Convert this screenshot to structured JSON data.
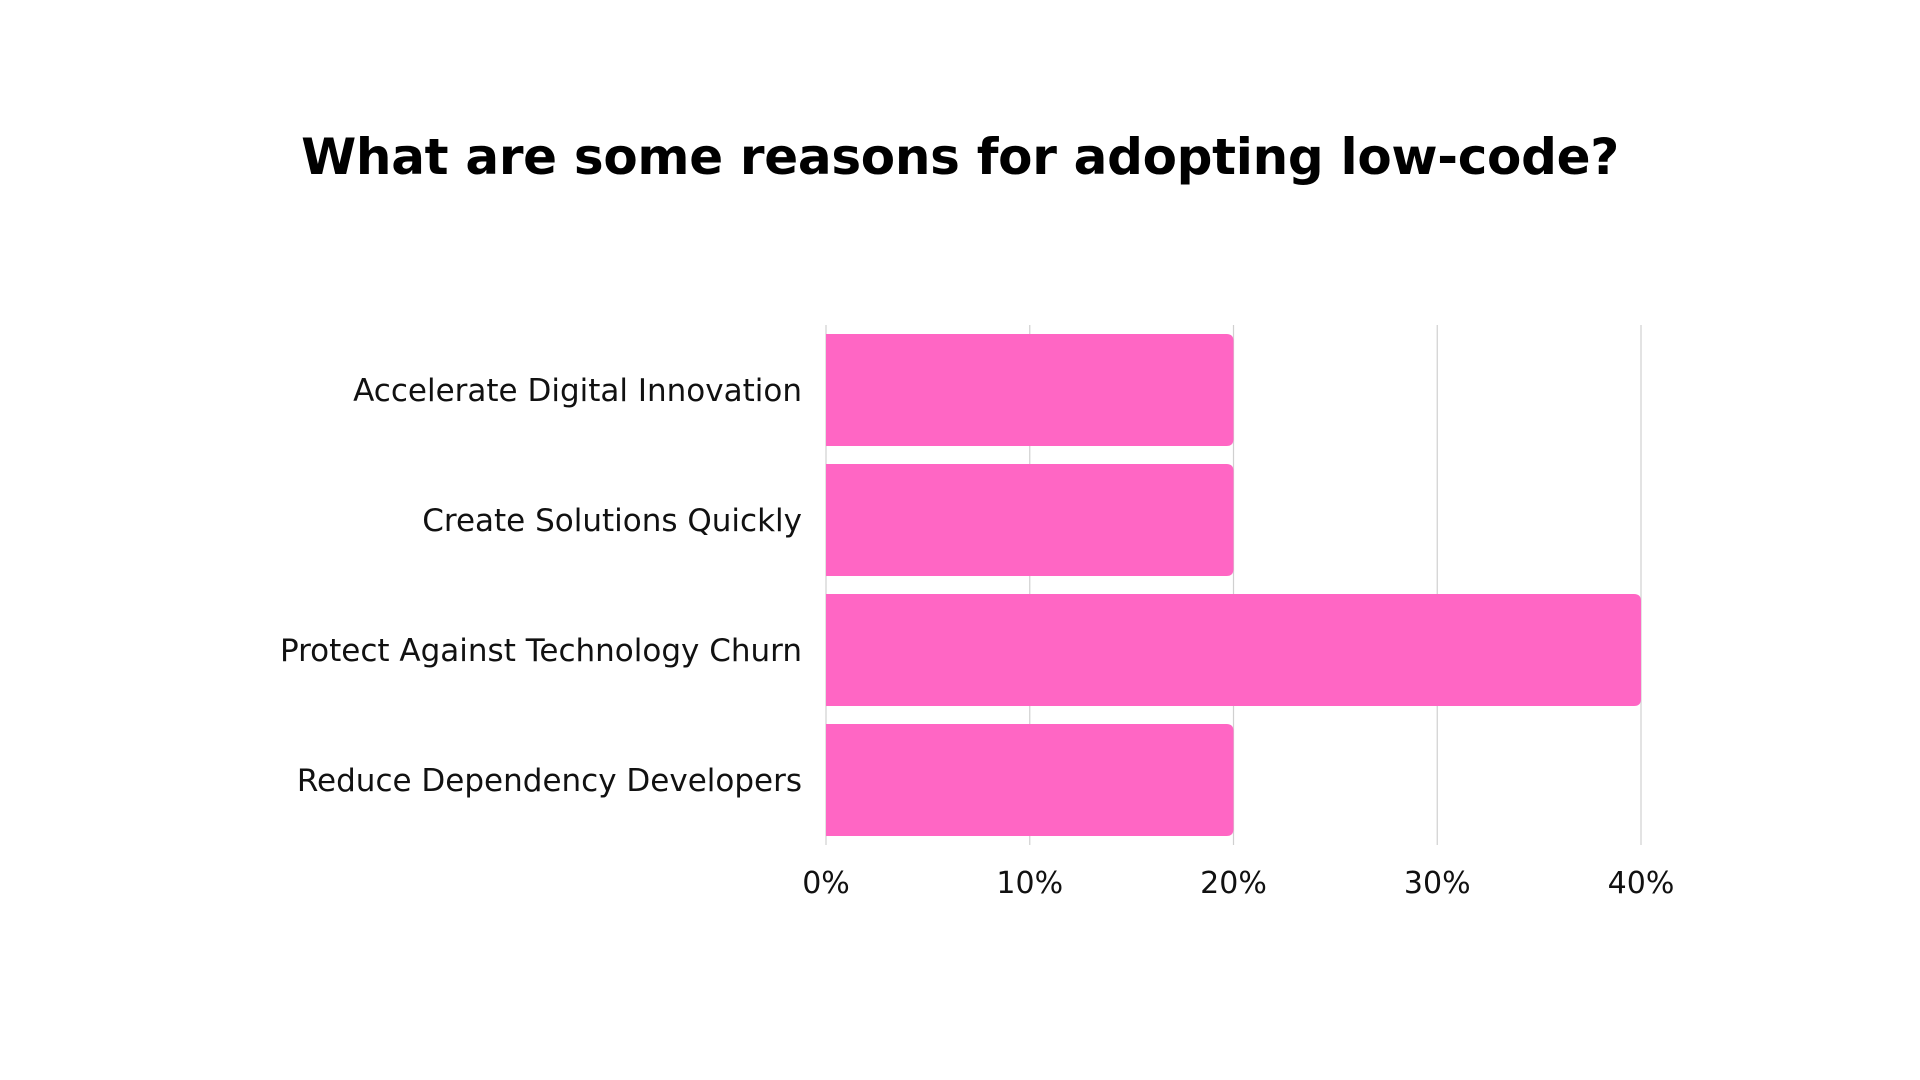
{
  "chart_data": {
    "type": "bar",
    "orientation": "horizontal",
    "title": "What are some reasons for adopting low-code?",
    "categories": [
      "Accelerate Digital Innovation",
      "Create Solutions Quickly",
      "Protect Against Technology Churn",
      "Reduce Dependency Developers"
    ],
    "values": [
      20,
      20,
      40,
      20
    ],
    "xlim": [
      0,
      40
    ],
    "xticks": [
      0,
      10,
      20,
      30,
      40
    ],
    "xtick_labels": [
      "0%",
      "10%",
      "20%",
      "30%",
      "40%"
    ],
    "grid": "vertical",
    "colors": {
      "bar": "#FF66C4",
      "grid": "#d0d0d0",
      "text": "#111111"
    }
  }
}
